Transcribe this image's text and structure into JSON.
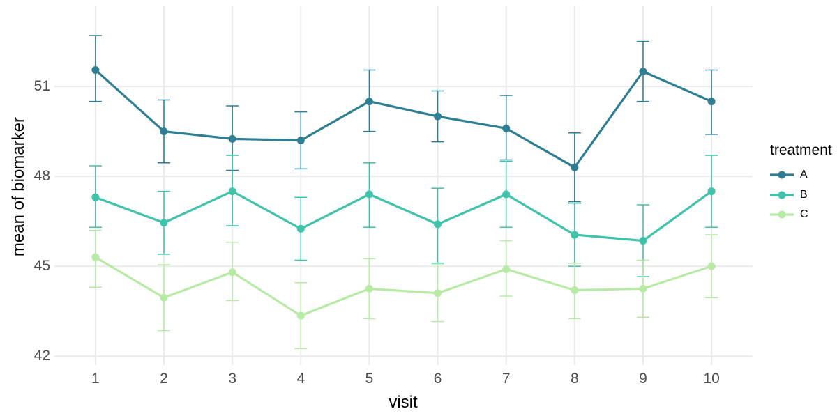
{
  "chart_data": {
    "type": "line",
    "title": "",
    "xlabel": "visit",
    "ylabel": "mean of biomarker",
    "x": [
      1,
      2,
      3,
      4,
      5,
      6,
      7,
      8,
      9,
      10
    ],
    "xticks": [
      1,
      2,
      3,
      4,
      5,
      6,
      7,
      8,
      9,
      10
    ],
    "yticks": [
      42,
      45,
      48,
      51
    ],
    "xlim": [
      0.4,
      10.6
    ],
    "ylim": [
      41.7,
      53.7
    ],
    "grid": "major",
    "error_bars": true,
    "background": "#ffffff",
    "grid_color": "#ebebeb",
    "tick_label_color": "#4d4d4d",
    "axis_title_color": "#000000",
    "legend": {
      "title": "treatment",
      "position": "right"
    },
    "series": [
      {
        "name": "A",
        "color": "#2e7f93",
        "means": [
          51.55,
          49.5,
          49.25,
          49.2,
          50.5,
          50.0,
          49.6,
          48.3,
          51.5,
          50.5
        ],
        "ci_lower": [
          50.5,
          48.45,
          48.2,
          48.25,
          49.5,
          49.15,
          48.55,
          47.15,
          50.5,
          49.4
        ],
        "ci_upper": [
          52.7,
          50.55,
          50.35,
          50.15,
          51.55,
          50.85,
          50.7,
          49.45,
          52.5,
          51.55
        ]
      },
      {
        "name": "B",
        "color": "#3fc3aa",
        "means": [
          47.3,
          46.45,
          47.5,
          46.25,
          47.4,
          46.4,
          47.4,
          46.05,
          45.85,
          47.5
        ],
        "ci_lower": [
          46.3,
          45.4,
          46.35,
          45.2,
          46.3,
          45.1,
          46.3,
          45.0,
          44.65,
          46.3
        ],
        "ci_upper": [
          48.35,
          47.5,
          48.7,
          47.3,
          48.45,
          47.6,
          48.5,
          47.1,
          47.05,
          48.7
        ]
      },
      {
        "name": "C",
        "color": "#b7eba5",
        "means": [
          45.3,
          43.95,
          44.8,
          43.35,
          44.25,
          44.1,
          44.9,
          44.2,
          44.25,
          45.0
        ],
        "ci_lower": [
          44.3,
          42.85,
          43.85,
          42.25,
          43.25,
          43.15,
          44.0,
          43.25,
          43.3,
          43.95
        ],
        "ci_upper": [
          46.2,
          45.05,
          45.8,
          44.45,
          45.25,
          45.05,
          45.85,
          45.1,
          45.2,
          46.05
        ]
      }
    ]
  }
}
